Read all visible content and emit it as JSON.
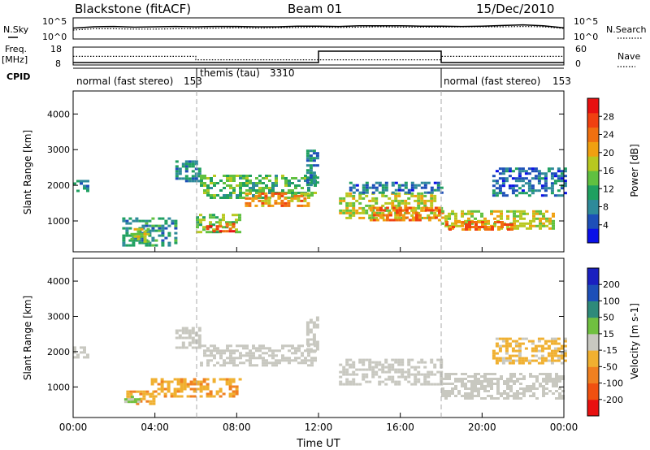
{
  "header": {
    "title": "Blackstone (fitACF)",
    "beam": "Beam 01",
    "date": "15/Dec/2010"
  },
  "summary_panels": {
    "nsky_label": "N.Sky",
    "nsearch_label": "N.Search",
    "freq_label": "Freq.",
    "freq_unit": "[MHz]",
    "nave_label": "Nave",
    "cpid_label": "CPID",
    "noise_ticks": [
      "10^5",
      "10^0"
    ],
    "freq_ticks": [
      "18",
      "8"
    ],
    "nave_ticks": [
      "60",
      "0"
    ]
  },
  "cpid_segments": [
    {
      "label": "normal (fast stereo)",
      "id": "153",
      "start_hour": 0,
      "end_hour": 6
    },
    {
      "label": "themis (tau)",
      "id": "3310",
      "start_hour": 6,
      "end_hour": 18
    },
    {
      "label": "normal (fast stereo)",
      "id": "153",
      "start_hour": 18,
      "end_hour": 24
    }
  ],
  "chart_data": [
    {
      "type": "line",
      "title": "",
      "x_range_hours": [
        0,
        24
      ],
      "series": [
        {
          "name": "N.Sky",
          "x": [
            0,
            1,
            2,
            3,
            4,
            5,
            6,
            7,
            8,
            9,
            10,
            11,
            12,
            13,
            14,
            15,
            16,
            17,
            18,
            19,
            20,
            21,
            22,
            23,
            24
          ],
          "y": [
            2.6,
            3.0,
            3.1,
            2.9,
            3.0,
            3.1,
            3.0,
            3.1,
            3.1,
            3.0,
            3.0,
            3.2,
            3.2,
            3.1,
            3.3,
            3.3,
            3.3,
            3.2,
            3.2,
            3.1,
            3.2,
            3.4,
            3.6,
            3.3,
            2.7
          ]
        },
        {
          "name": "N.Search",
          "x": [
            0,
            1,
            2,
            3,
            4,
            5,
            6,
            7,
            8,
            9,
            10,
            11,
            12,
            13,
            14,
            15,
            16,
            17,
            18,
            19,
            20,
            21,
            22,
            23,
            24
          ],
          "y": [
            2.0,
            2.4,
            2.4,
            2.3,
            2.3,
            2.4,
            2.5,
            2.6,
            2.7,
            2.6,
            2.7,
            2.8,
            2.9,
            2.8,
            2.9,
            3.0,
            2.9,
            2.9,
            2.9,
            3.0,
            3.0,
            3.0,
            3.1,
            3.0,
            2.5
          ]
        }
      ],
      "ylim_log10": [
        0,
        5
      ]
    },
    {
      "type": "line",
      "title": "",
      "x_range_hours": [
        0,
        24
      ],
      "series": [
        {
          "name": "Freq.",
          "x": [
            0,
            12,
            12,
            18,
            18,
            24
          ],
          "y": [
            8,
            8,
            18,
            18,
            8,
            8
          ],
          "unit": "MHz"
        },
        {
          "name": "Nave",
          "x": [
            0,
            6,
            6,
            18,
            18,
            24
          ],
          "y": [
            32,
            32,
            18,
            18,
            32,
            32
          ]
        }
      ],
      "ylim_freq": [
        8,
        18
      ],
      "ylim_nave": [
        0,
        60
      ]
    },
    {
      "type": "heatmap",
      "title": "",
      "ylabel": "Slant Range [km]",
      "xlabel": "Time UT",
      "x_range_hours": [
        0,
        24
      ],
      "ylim_km": [
        180,
        4600
      ],
      "yticks": [
        "1000",
        "2000",
        "3000",
        "4000"
      ],
      "xticks": [
        "00:00",
        "04:00",
        "08:00",
        "12:00",
        "16:00",
        "20:00",
        "00:00"
      ],
      "colorbar": {
        "label": "Power [dB]",
        "ticks": [
          "28",
          "24",
          "20",
          "16",
          "12",
          "8",
          "4"
        ],
        "range": [
          0,
          30
        ],
        "colors": [
          "#0a10e8",
          "#1d4fb8",
          "#2e8a9a",
          "#1fa060",
          "#60c040",
          "#b8c820",
          "#f0a010",
          "#f07010",
          "#f04010",
          "#e81010"
        ]
      },
      "echo_regions": [
        {
          "t0": 0.0,
          "t1": 0.7,
          "r0": 1850,
          "r1": 2150,
          "p": 8
        },
        {
          "t0": 2.4,
          "t1": 5.0,
          "r0": 300,
          "r1": 1100,
          "p": 9
        },
        {
          "t0": 2.8,
          "t1": 3.6,
          "r0": 400,
          "r1": 800,
          "p": 17
        },
        {
          "t0": 5.0,
          "t1": 6.2,
          "r0": 2100,
          "r1": 2700,
          "p": 8
        },
        {
          "t0": 6.2,
          "t1": 11.8,
          "r0": 1650,
          "r1": 2300,
          "p": 12
        },
        {
          "t0": 8.4,
          "t1": 11.5,
          "r0": 1400,
          "r1": 1800,
          "p": 21
        },
        {
          "t0": 6.0,
          "t1": 8.2,
          "r0": 700,
          "r1": 1200,
          "p": 14
        },
        {
          "t0": 6.5,
          "t1": 7.8,
          "r0": 700,
          "r1": 950,
          "p": 25
        },
        {
          "t0": 11.4,
          "t1": 12.0,
          "r0": 2000,
          "r1": 3000,
          "p": 8
        },
        {
          "t0": 13.0,
          "t1": 18.0,
          "r0": 1050,
          "r1": 1800,
          "p": 16
        },
        {
          "t0": 14.5,
          "t1": 18.0,
          "r0": 1000,
          "r1": 1400,
          "p": 22
        },
        {
          "t0": 13.5,
          "t1": 18.0,
          "r0": 1800,
          "r1": 2100,
          "p": 6
        },
        {
          "t0": 18.0,
          "t1": 23.5,
          "r0": 800,
          "r1": 1300,
          "p": 16
        },
        {
          "t0": 18.2,
          "t1": 21.5,
          "r0": 750,
          "r1": 1000,
          "p": 23
        },
        {
          "t0": 20.5,
          "t1": 24.0,
          "r0": 1700,
          "r1": 2500,
          "p": 6
        }
      ]
    },
    {
      "type": "heatmap",
      "title": "",
      "ylabel": "Slant Range [km]",
      "xlabel": "Time UT",
      "x_range_hours": [
        0,
        24
      ],
      "ylim_km": [
        180,
        4600
      ],
      "yticks": [
        "1000",
        "2000",
        "3000",
        "4000"
      ],
      "xticks": [
        "00:00",
        "04:00",
        "08:00",
        "12:00",
        "16:00",
        "20:00",
        "00:00"
      ],
      "colorbar": {
        "label": "Velocity [m s-1]",
        "ticks": [
          "200",
          "100",
          "50",
          "15",
          "-15",
          "-50",
          "-100",
          "-200"
        ],
        "range": [
          -250,
          250
        ],
        "colors": [
          "#e81010",
          "#f05010",
          "#f08020",
          "#f0b030",
          "#c8c8c0",
          "#70c040",
          "#2e8a7a",
          "#1d4fb8",
          "#1a20c0"
        ]
      },
      "echo_regions": [
        {
          "t0": 0.0,
          "t1": 0.7,
          "r0": 1850,
          "r1": 2150,
          "v": 0
        },
        {
          "t0": 2.6,
          "t1": 4.0,
          "r0": 500,
          "r1": 900,
          "v": -80
        },
        {
          "t0": 2.5,
          "t1": 3.2,
          "r0": 550,
          "r1": 750,
          "v": 40
        },
        {
          "t0": 3.8,
          "t1": 8.2,
          "r0": 700,
          "r1": 1250,
          "v": -75
        },
        {
          "t0": 5.0,
          "t1": 6.2,
          "r0": 2100,
          "r1": 2700,
          "v": 5
        },
        {
          "t0": 6.2,
          "t1": 11.8,
          "r0": 1600,
          "r1": 2200,
          "v": 0
        },
        {
          "t0": 11.4,
          "t1": 12.0,
          "r0": 2000,
          "r1": 3000,
          "v": 0
        },
        {
          "t0": 13.0,
          "t1": 18.0,
          "r0": 1050,
          "r1": 1800,
          "v": 0
        },
        {
          "t0": 18.0,
          "t1": 24.0,
          "r0": 700,
          "r1": 1400,
          "v": -5
        },
        {
          "t0": 20.5,
          "t1": 24.0,
          "r0": 1700,
          "r1": 2400,
          "v": -40
        }
      ]
    }
  ]
}
